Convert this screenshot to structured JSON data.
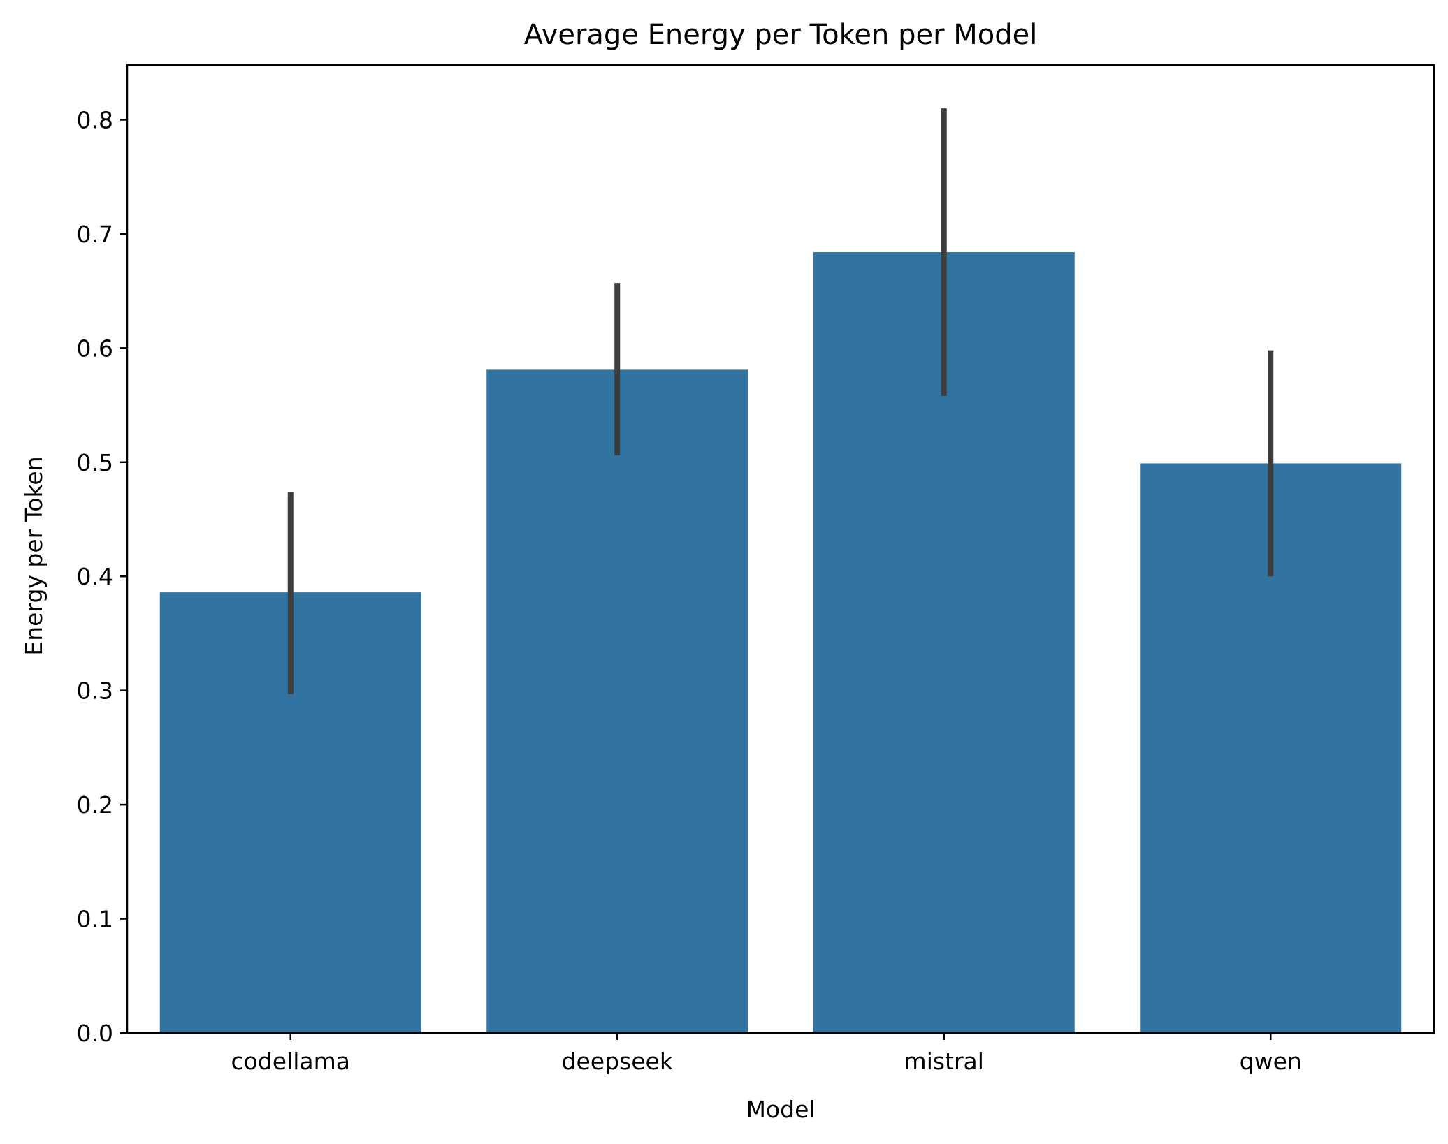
{
  "chart_data": {
    "type": "bar",
    "title": "Average Energy per Token per Model",
    "xlabel": "Model",
    "ylabel": "Energy per Token",
    "categories": [
      "codellama",
      "deepseek",
      "mistral",
      "qwen"
    ],
    "values": [
      0.386,
      0.581,
      0.684,
      0.499
    ],
    "error_bars": [
      {
        "low": 0.297,
        "high": 0.474
      },
      {
        "low": 0.506,
        "high": 0.657
      },
      {
        "low": 0.558,
        "high": 0.81
      },
      {
        "low": 0.4,
        "high": 0.598
      }
    ],
    "ylim": [
      0,
      0.848
    ],
    "yticks": [
      "0.0",
      "0.1",
      "0.2",
      "0.3",
      "0.4",
      "0.5",
      "0.6",
      "0.7",
      "0.8"
    ],
    "grid": false,
    "legend": "none",
    "colors": {
      "bar": "#3274a1",
      "error_bar": "#3d3d3d",
      "axis": "#000000"
    }
  }
}
